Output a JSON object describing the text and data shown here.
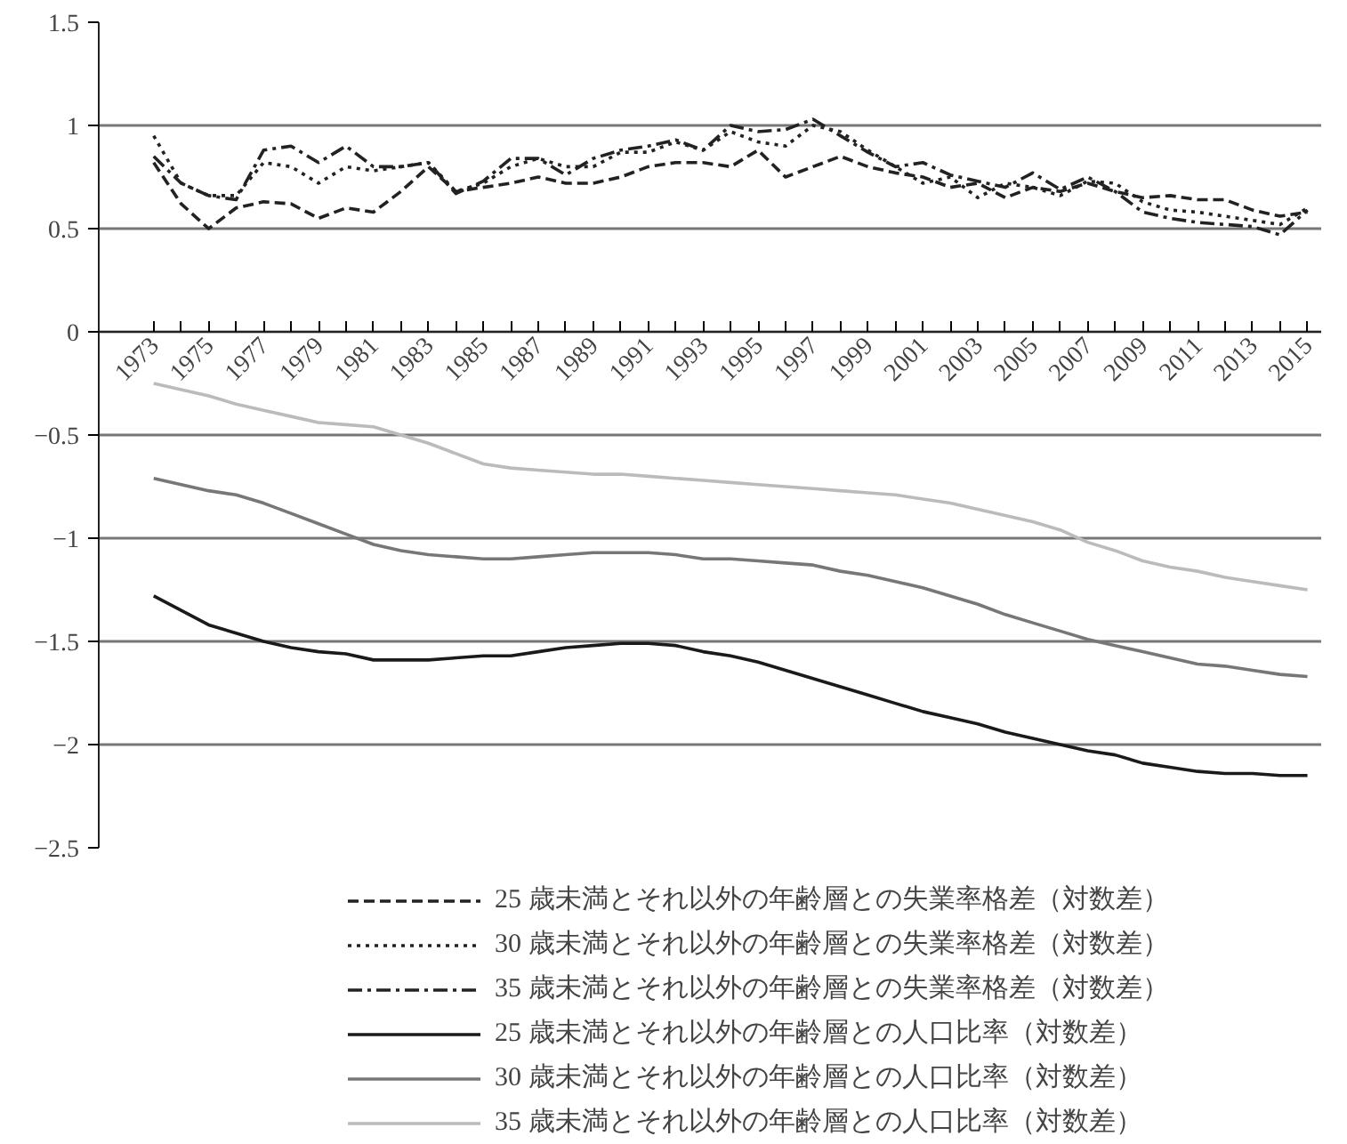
{
  "chart_data": {
    "type": "line",
    "categories": [
      "1973",
      null,
      "1975",
      null,
      "1977",
      null,
      "1979",
      null,
      "1981",
      null,
      "1983",
      null,
      "1985",
      null,
      "1987",
      null,
      "1989",
      null,
      "1991",
      null,
      "1993",
      null,
      "1995",
      null,
      "1997",
      null,
      "1999",
      null,
      "2001",
      null,
      "2003",
      null,
      "2005",
      null,
      "2007",
      null,
      "2009",
      null,
      "2011",
      null,
      "2013",
      null,
      "2015"
    ],
    "ylim": [
      -2.5,
      1.5
    ],
    "yticks": [
      1.5,
      1,
      0.5,
      0,
      {
        "value": -0.5,
        "label": "−0.5"
      },
      {
        "value": -1,
        "label": "−1"
      },
      {
        "value": -1.5,
        "label": "−1.5"
      },
      {
        "value": -2,
        "label": "−2"
      },
      {
        "value": -2.5,
        "label": "−2.5"
      }
    ],
    "grid": "y",
    "legend": "bottom",
    "marker": "none",
    "series": [
      {
        "name": "25 歳未満とそれ以外の年齢層との失業率格差（対数差）",
        "color": "#222222",
        "line_style": "dashed",
        "values": [
          0.82,
          0.62,
          0.5,
          0.6,
          0.63,
          0.62,
          0.55,
          0.6,
          0.58,
          0.68,
          0.8,
          0.68,
          0.7,
          0.72,
          0.75,
          0.72,
          0.72,
          0.75,
          0.8,
          0.82,
          0.82,
          0.8,
          0.88,
          0.75,
          0.8,
          0.85,
          0.8,
          0.77,
          0.75,
          0.7,
          0.72,
          0.65,
          0.7,
          0.68,
          0.72,
          0.68,
          0.65,
          0.66,
          0.64,
          0.64,
          0.59,
          0.56,
          0.58
        ]
      },
      {
        "name": "30 歳未満とそれ以外の年齢層との失業率格差（対数差）",
        "color": "#222222",
        "line_style": "dotted",
        "values": [
          0.95,
          0.72,
          0.66,
          0.66,
          0.82,
          0.8,
          0.72,
          0.8,
          0.78,
          0.8,
          0.82,
          0.68,
          0.72,
          0.8,
          0.84,
          0.8,
          0.8,
          0.87,
          0.87,
          0.92,
          0.88,
          0.97,
          0.92,
          0.9,
          1.0,
          0.97,
          0.88,
          0.8,
          0.72,
          0.75,
          0.65,
          0.72,
          0.7,
          0.66,
          0.73,
          0.72,
          0.63,
          0.59,
          0.58,
          0.56,
          0.54,
          0.52,
          0.6
        ]
      },
      {
        "name": "35 歳未満とそれ以外の年齢層との失業率格差（対数差）",
        "color": "#222222",
        "line_style": "dashdot",
        "values": [
          0.85,
          0.72,
          0.66,
          0.64,
          0.88,
          0.9,
          0.82,
          0.9,
          0.8,
          0.8,
          0.82,
          0.67,
          0.73,
          0.84,
          0.84,
          0.76,
          0.84,
          0.88,
          0.9,
          0.93,
          0.88,
          1.0,
          0.97,
          0.98,
          1.03,
          0.95,
          0.87,
          0.8,
          0.82,
          0.76,
          0.73,
          0.7,
          0.77,
          0.69,
          0.75,
          0.68,
          0.58,
          0.55,
          0.53,
          0.52,
          0.51,
          0.47,
          0.59
        ]
      },
      {
        "name": "25 歳未満とそれ以外の年齢層との人口比率（対数差）",
        "color": "#1a1a1a",
        "line_style": "solid",
        "values": [
          -1.28,
          -1.35,
          -1.42,
          -1.46,
          -1.5,
          -1.53,
          -1.55,
          -1.56,
          -1.59,
          -1.59,
          -1.59,
          -1.58,
          -1.57,
          -1.57,
          -1.55,
          -1.53,
          -1.52,
          -1.51,
          -1.51,
          -1.52,
          -1.55,
          -1.57,
          -1.6,
          -1.64,
          -1.68,
          -1.72,
          -1.76,
          -1.8,
          -1.84,
          -1.87,
          -1.9,
          -1.94,
          -1.97,
          -2.0,
          -2.03,
          -2.05,
          -2.09,
          -2.11,
          -2.13,
          -2.14,
          -2.14,
          -2.15,
          -2.15
        ]
      },
      {
        "name": "30 歳未満とそれ以外の年齢層との人口比率（対数差）",
        "color": "#777777",
        "line_style": "solid",
        "values": [
          -0.71,
          -0.74,
          -0.77,
          -0.79,
          -0.83,
          -0.88,
          -0.93,
          -0.98,
          -1.03,
          -1.06,
          -1.08,
          -1.09,
          -1.1,
          -1.1,
          -1.09,
          -1.08,
          -1.07,
          -1.07,
          -1.07,
          -1.08,
          -1.1,
          -1.1,
          -1.11,
          -1.12,
          -1.13,
          -1.16,
          -1.18,
          -1.21,
          -1.24,
          -1.28,
          -1.32,
          -1.37,
          -1.41,
          -1.45,
          -1.49,
          -1.52,
          -1.55,
          -1.58,
          -1.61,
          -1.62,
          -1.64,
          -1.66,
          -1.67
        ]
      },
      {
        "name": "35 歳未満とそれ以外の年齢層との人口比率（対数差）",
        "color": "#bbbbbb",
        "line_style": "solid",
        "values": [
          -0.25,
          -0.28,
          -0.31,
          -0.35,
          -0.38,
          -0.41,
          -0.44,
          -0.45,
          -0.46,
          -0.5,
          -0.54,
          -0.59,
          -0.64,
          -0.66,
          -0.67,
          -0.68,
          -0.69,
          -0.69,
          -0.7,
          -0.71,
          -0.72,
          -0.73,
          -0.74,
          -0.75,
          -0.76,
          -0.77,
          -0.78,
          -0.79,
          -0.81,
          -0.83,
          -0.86,
          -0.89,
          -0.92,
          -0.96,
          -1.02,
          -1.06,
          -1.11,
          -1.14,
          -1.16,
          -1.19,
          -1.21,
          -1.23,
          -1.25
        ]
      }
    ]
  }
}
